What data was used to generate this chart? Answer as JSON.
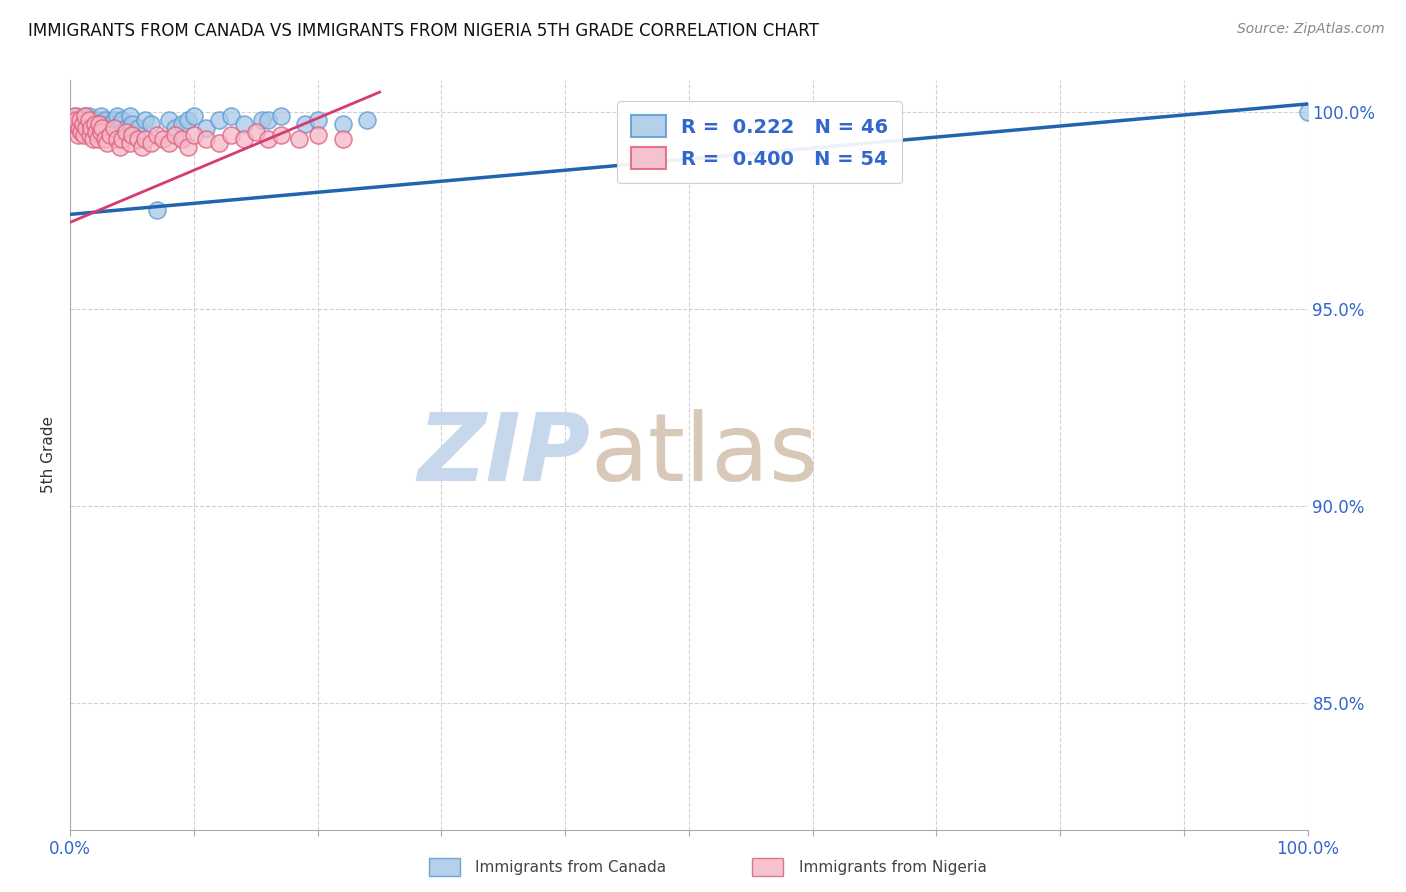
{
  "title": "IMMIGRANTS FROM CANADA VS IMMIGRANTS FROM NIGERIA 5TH GRADE CORRELATION CHART",
  "source": "Source: ZipAtlas.com",
  "ylabel": "5th Grade",
  "xlim": [
    0.0,
    1.0
  ],
  "ylim": [
    0.818,
    1.008
  ],
  "yticks": [
    0.85,
    0.9,
    0.95,
    1.0
  ],
  "ytick_labels": [
    "85.0%",
    "90.0%",
    "95.0%",
    "100.0%"
  ],
  "xticks": [
    0.0,
    0.1,
    0.2,
    0.3,
    0.4,
    0.5,
    0.6,
    0.7,
    0.8,
    0.9,
    1.0
  ],
  "xtick_labels": [
    "0.0%",
    "",
    "",
    "",
    "",
    "",
    "",
    "",
    "",
    "",
    "100.0%"
  ],
  "canada_color": "#a8c8e8",
  "canada_edge_color": "#5b9bd5",
  "nigeria_color": "#f4b8c8",
  "nigeria_edge_color": "#e0607a",
  "trendline_canada_color": "#2166ac",
  "trendline_nigeria_color": "#d63a6e",
  "background_color": "#ffffff",
  "watermark_zip_color": "#c8d8ec",
  "watermark_atlas_color": "#d8c8b8",
  "legend_R_canada": "0.222",
  "legend_N_canada": "46",
  "legend_R_nigeria": "0.400",
  "legend_N_nigeria": "54",
  "canada_x": [
    0.002,
    0.005,
    0.008,
    0.01,
    0.01,
    0.012,
    0.013,
    0.015,
    0.015,
    0.017,
    0.018,
    0.02,
    0.022,
    0.025,
    0.025,
    0.028,
    0.03,
    0.032,
    0.035,
    0.038,
    0.04,
    0.042,
    0.045,
    0.048,
    0.05,
    0.055,
    0.06,
    0.065,
    0.07,
    0.08,
    0.085,
    0.09,
    0.095,
    0.1,
    0.11,
    0.12,
    0.13,
    0.14,
    0.155,
    0.16,
    0.17,
    0.19,
    0.2,
    0.22,
    0.24,
    1.0
  ],
  "canada_y": [
    0.998,
    0.999,
    0.997,
    0.998,
    0.996,
    0.999,
    0.998,
    0.997,
    0.999,
    0.998,
    0.996,
    0.997,
    0.998,
    0.999,
    0.997,
    0.998,
    0.996,
    0.997,
    0.998,
    0.999,
    0.997,
    0.998,
    0.996,
    0.999,
    0.997,
    0.996,
    0.998,
    0.997,
    0.975,
    0.998,
    0.996,
    0.997,
    0.998,
    0.999,
    0.996,
    0.998,
    0.999,
    0.997,
    0.998,
    0.998,
    0.999,
    0.997,
    0.998,
    0.997,
    0.998,
    1.0
  ],
  "nigeria_x": [
    0.001,
    0.002,
    0.003,
    0.004,
    0.005,
    0.006,
    0.007,
    0.008,
    0.009,
    0.01,
    0.011,
    0.012,
    0.013,
    0.015,
    0.016,
    0.017,
    0.018,
    0.02,
    0.021,
    0.022,
    0.023,
    0.025,
    0.026,
    0.028,
    0.03,
    0.032,
    0.035,
    0.038,
    0.04,
    0.042,
    0.045,
    0.048,
    0.05,
    0.055,
    0.058,
    0.06,
    0.065,
    0.07,
    0.075,
    0.08,
    0.085,
    0.09,
    0.095,
    0.1,
    0.11,
    0.12,
    0.13,
    0.14,
    0.15,
    0.16,
    0.17,
    0.185,
    0.2,
    0.22
  ],
  "nigeria_y": [
    0.998,
    0.996,
    0.999,
    0.997,
    0.998,
    0.994,
    0.996,
    0.998,
    0.995,
    0.997,
    0.994,
    0.999,
    0.996,
    0.998,
    0.994,
    0.996,
    0.993,
    0.997,
    0.995,
    0.993,
    0.997,
    0.995,
    0.996,
    0.993,
    0.992,
    0.994,
    0.996,
    0.993,
    0.991,
    0.993,
    0.995,
    0.992,
    0.994,
    0.993,
    0.991,
    0.993,
    0.992,
    0.994,
    0.993,
    0.992,
    0.994,
    0.993,
    0.991,
    0.994,
    0.993,
    0.992,
    0.994,
    0.993,
    0.995,
    0.993,
    0.994,
    0.993,
    0.994,
    0.993
  ],
  "canada_trendline_x": [
    0.0,
    1.0
  ],
  "canada_trendline_y": [
    0.974,
    1.002
  ],
  "nigeria_trendline_x": [
    0.0,
    0.25
  ],
  "nigeria_trendline_y": [
    0.972,
    1.005
  ]
}
